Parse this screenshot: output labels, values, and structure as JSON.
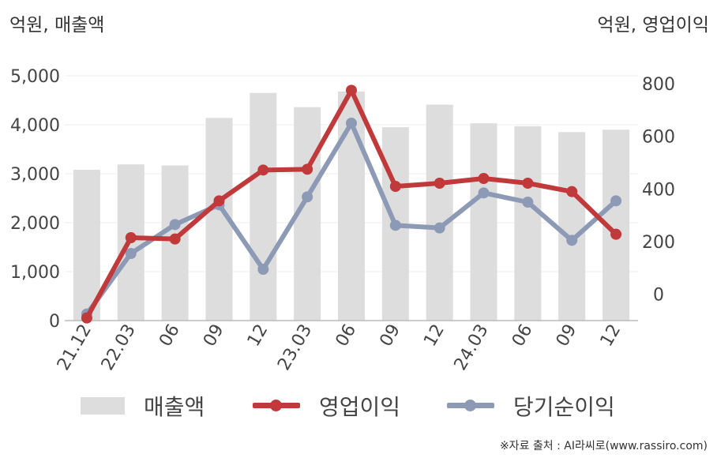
{
  "units": {
    "left": "억원, 매출액",
    "right": "억원, 영업이익"
  },
  "source": "※자료 출처 : AI라씨로(www.rassiro.com)",
  "colors": {
    "bar": "#dddddd",
    "operating": "#c0393b",
    "net": "#8d9ab5",
    "grid": "#eeeeee",
    "axis": "#bbbbbb",
    "text": "#444444"
  },
  "chart_data": {
    "type": "bar",
    "categories": [
      "21.12",
      "22.03",
      "06",
      "09",
      "12",
      "23.03",
      "06",
      "09",
      "12",
      "24.03",
      "06",
      "09",
      "12"
    ],
    "left_axis": {
      "ylim": [
        0,
        5000
      ],
      "ticks": [
        "0",
        "1,000",
        "2,000",
        "3,000",
        "4,000",
        "5,000"
      ],
      "tick_values": [
        0,
        1000,
        2000,
        3000,
        4000,
        5000
      ]
    },
    "right_axis": {
      "ylim": [
        -100,
        830
      ],
      "ticks": [
        "0",
        "200",
        "400",
        "600",
        "800"
      ],
      "tick_values": [
        0,
        200,
        400,
        600,
        800
      ]
    },
    "series": [
      {
        "name": "매출액",
        "type": "bar",
        "axis": "left",
        "values": [
          3080,
          3190,
          3170,
          4140,
          4650,
          4360,
          4680,
          3950,
          4410,
          4030,
          3970,
          3850,
          3900
        ]
      },
      {
        "name": "영업이익",
        "type": "line",
        "axis": "right",
        "values": [
          -90,
          215,
          210,
          355,
          472,
          475,
          775,
          410,
          422,
          440,
          422,
          390,
          228
        ]
      },
      {
        "name": "당기순이익",
        "type": "line",
        "axis": "right",
        "values": [
          -75,
          155,
          265,
          340,
          95,
          370,
          650,
          262,
          252,
          385,
          350,
          205,
          355
        ]
      }
    ],
    "grid": true,
    "legend": "bottom"
  }
}
